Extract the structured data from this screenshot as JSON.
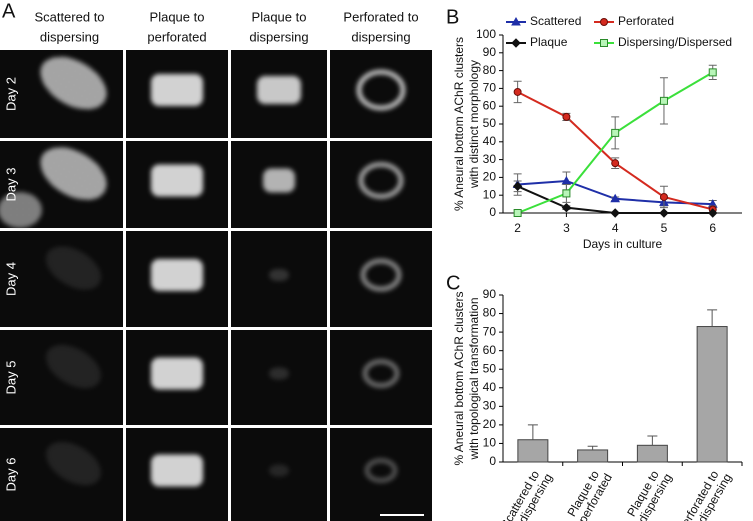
{
  "panel_labels": [
    "A",
    "B",
    "C"
  ],
  "micrographs": {
    "columns": [
      [
        "Scattered to",
        "dispersing"
      ],
      [
        "Plaque to",
        "perforated"
      ],
      [
        "Plaque to",
        "dispersing"
      ],
      [
        "Perforated to",
        "dispersing"
      ]
    ],
    "rows": [
      "Day 2",
      "Day 3",
      "Day 4",
      "Day 5",
      "Day 6"
    ]
  },
  "chart_data": [
    {
      "type": "line",
      "ylabel": [
        "% Aneural bottom AChR clusters",
        "with distinct morphology"
      ],
      "xlabel": "Days in culture",
      "x": [
        2,
        3,
        4,
        5,
        6
      ],
      "xlim": [
        1.7,
        6.6
      ],
      "xticks": [
        2,
        3,
        4,
        5,
        6
      ],
      "ylim": [
        0,
        100
      ],
      "yticks": [
        0,
        10,
        20,
        30,
        40,
        50,
        60,
        70,
        80,
        90,
        100
      ],
      "series": [
        {
          "name": "Scattered",
          "color": "#1f2fa8",
          "marker": "triangle",
          "values": [
            16,
            18,
            8,
            6,
            5
          ],
          "errors": [
            6,
            5,
            1,
            2,
            2
          ]
        },
        {
          "name": "Perforated",
          "color": "#d42a1f",
          "marker": "circle",
          "values": [
            68,
            54,
            28,
            9,
            2
          ],
          "errors": [
            6,
            2,
            3,
            6,
            2
          ]
        },
        {
          "name": "Plaque",
          "color": "#111111",
          "marker": "diamond",
          "values": [
            15,
            3,
            0,
            0,
            0
          ],
          "errors": [
            3,
            1,
            0,
            0,
            0
          ]
        },
        {
          "name": "Dispersing/Dispersed",
          "color": "#3be03b",
          "marker": "square",
          "values": [
            0,
            11,
            45,
            63,
            79
          ],
          "errors": [
            0,
            5,
            9,
            13,
            4
          ]
        }
      ]
    },
    {
      "type": "bar",
      "ylabel": [
        "% Aneural bottom AChR clusters",
        "with topological transformation"
      ],
      "categories": [
        [
          "Scattered to",
          "dispersing"
        ],
        [
          "Plaque to",
          "perforated"
        ],
        [
          "Plaque to",
          "dispersing"
        ],
        [
          "Perforated to",
          "dispersing"
        ]
      ],
      "values": [
        12,
        6.5,
        9,
        73
      ],
      "errors": [
        8,
        2,
        5,
        9
      ],
      "color": "#a6a6a6",
      "ylim": [
        0,
        90
      ],
      "yticks": [
        0,
        10,
        20,
        30,
        40,
        50,
        60,
        70,
        80,
        90
      ]
    }
  ]
}
